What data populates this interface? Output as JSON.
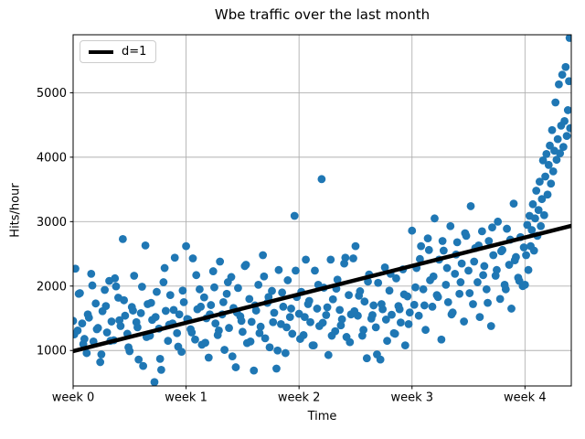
{
  "chart_data": {
    "type": "scatter",
    "title": "Wbe traffic over the last month",
    "xlabel": "Time",
    "ylabel": "Hits/hour",
    "x_unit": "weeks",
    "xlim": [
      0,
      4.41
    ],
    "ylim": [
      450,
      5900
    ],
    "x_ticks": [
      0,
      1,
      2,
      3,
      4
    ],
    "x_tick_labels": [
      "week 0",
      "week 1",
      "week 2",
      "week 3",
      "week 4"
    ],
    "y_ticks": [
      1000,
      2000,
      3000,
      4000,
      5000
    ],
    "y_tick_labels": [
      "1000",
      "2000",
      "3000",
      "4000",
      "5000"
    ],
    "grid": true,
    "grid_color": "#b0b0b0",
    "marker_color": "#1f77b4",
    "marker_radius": 4.4,
    "spine_color": "#000000",
    "legend": {
      "position": "upper left",
      "entries": [
        {
          "label": "d=1",
          "type": "line",
          "color": "#000000",
          "linewidth": 4
        }
      ]
    },
    "trend_line": {
      "name": "d=1",
      "color": "#000000",
      "linewidth": 4.5,
      "x": [
        0,
        4.41
      ],
      "y": [
        990,
        2935
      ]
    },
    "points": [
      [
        0.0,
        1460
      ],
      [
        0.02,
        2270
      ],
      [
        0.04,
        1310
      ],
      [
        0.06,
        1890
      ],
      [
        0.08,
        1420
      ],
      [
        0.1,
        1180
      ],
      [
        0.12,
        960
      ],
      [
        0.14,
        1510
      ],
      [
        0.16,
        2190
      ],
      [
        0.18,
        1140
      ],
      [
        0.2,
        1730
      ],
      [
        0.22,
        1350
      ],
      [
        0.24,
        820
      ],
      [
        0.26,
        1610
      ],
      [
        0.28,
        1940
      ],
      [
        0.3,
        1280
      ],
      [
        0.32,
        2080
      ],
      [
        0.34,
        1450
      ],
      [
        0.36,
        1160
      ],
      [
        0.38,
        1995
      ],
      [
        0.4,
        1820
      ],
      [
        0.42,
        1380
      ],
      [
        0.44,
        2730
      ],
      [
        0.46,
        1540
      ],
      [
        0.48,
        1260
      ],
      [
        0.5,
        990
      ],
      [
        0.52,
        1675
      ],
      [
        0.54,
        2160
      ],
      [
        0.56,
        1440
      ],
      [
        0.58,
        860
      ],
      [
        0.6,
        1580
      ],
      [
        0.62,
        760
      ],
      [
        0.64,
        2630
      ],
      [
        0.66,
        1720
      ],
      [
        0.68,
        1230
      ],
      [
        0.7,
        1475
      ],
      [
        0.72,
        510
      ],
      [
        0.74,
        1910
      ],
      [
        0.76,
        1340
      ],
      [
        0.78,
        700
      ],
      [
        0.8,
        2060
      ],
      [
        0.82,
        1615
      ],
      [
        0.84,
        1150
      ],
      [
        0.86,
        1860
      ],
      [
        0.88,
        1420
      ],
      [
        0.9,
        2440
      ],
      [
        0.92,
        1270
      ],
      [
        0.94,
        1560
      ],
      [
        0.96,
        980
      ],
      [
        0.98,
        1750
      ],
      [
        1.0,
        2620
      ],
      [
        1.02,
        1480
      ],
      [
        1.04,
        1330
      ],
      [
        1.06,
        2430
      ],
      [
        1.08,
        1170
      ],
      [
        1.1,
        1640
      ],
      [
        1.12,
        1950
      ],
      [
        1.14,
        1090
      ],
      [
        1.16,
        1825
      ],
      [
        1.18,
        1500
      ],
      [
        1.2,
        890
      ],
      [
        1.22,
        1705
      ],
      [
        1.24,
        2230
      ],
      [
        1.26,
        1420
      ],
      [
        1.28,
        1240
      ],
      [
        1.3,
        2380
      ],
      [
        1.32,
        1560
      ],
      [
        1.34,
        1010
      ],
      [
        1.36,
        1880
      ],
      [
        1.38,
        1350
      ],
      [
        1.4,
        2140
      ],
      [
        1.42,
        1660
      ],
      [
        1.44,
        740
      ],
      [
        1.46,
        1970
      ],
      [
        1.48,
        1530
      ],
      [
        1.5,
        1290
      ],
      [
        1.52,
        2310
      ],
      [
        1.54,
        1115
      ],
      [
        1.56,
        1800
      ],
      [
        1.58,
        1445
      ],
      [
        1.6,
        690
      ],
      [
        1.62,
        1620
      ],
      [
        1.64,
        2020
      ],
      [
        1.66,
        1370
      ],
      [
        1.68,
        2480
      ],
      [
        1.7,
        1190
      ],
      [
        1.72,
        1740
      ],
      [
        1.74,
        1050
      ],
      [
        1.76,
        1925
      ],
      [
        1.78,
        1585
      ],
      [
        1.8,
        720
      ],
      [
        1.82,
        2250
      ],
      [
        1.84,
        1410
      ],
      [
        1.86,
        1680
      ],
      [
        1.88,
        960
      ],
      [
        1.9,
        2090
      ],
      [
        1.92,
        1520
      ],
      [
        1.94,
        1260
      ],
      [
        1.96,
        3090
      ],
      [
        1.98,
        1830
      ],
      [
        2.0,
        1570
      ],
      [
        2.02,
        1910
      ],
      [
        2.04,
        1240
      ],
      [
        2.06,
        2410
      ],
      [
        2.08,
        1720
      ],
      [
        2.1,
        1440
      ],
      [
        2.12,
        1080
      ],
      [
        2.14,
        2240
      ],
      [
        2.16,
        1650
      ],
      [
        2.18,
        1380
      ],
      [
        2.2,
        3660
      ],
      [
        2.22,
        1975
      ],
      [
        2.24,
        1550
      ],
      [
        2.26,
        930
      ],
      [
        2.28,
        2410
      ],
      [
        2.3,
        1795
      ],
      [
        2.32,
        1300
      ],
      [
        2.34,
        2100
      ],
      [
        2.36,
        1630
      ],
      [
        2.38,
        1485
      ],
      [
        2.4,
        2350
      ],
      [
        2.42,
        1210
      ],
      [
        2.44,
        1860
      ],
      [
        2.46,
        1560
      ],
      [
        2.48,
        2430
      ],
      [
        2.5,
        2620
      ],
      [
        2.52,
        1540
      ],
      [
        2.54,
        1920
      ],
      [
        2.56,
        1230
      ],
      [
        2.58,
        1760
      ],
      [
        2.6,
        880
      ],
      [
        2.62,
        2180
      ],
      [
        2.64,
        1495
      ],
      [
        2.66,
        1700
      ],
      [
        2.68,
        1360
      ],
      [
        2.7,
        2050
      ],
      [
        2.72,
        860
      ],
      [
        2.74,
        1640
      ],
      [
        2.76,
        2290
      ],
      [
        2.78,
        1150
      ],
      [
        2.8,
        1930
      ],
      [
        2.82,
        1555
      ],
      [
        2.84,
        1270
      ],
      [
        2.86,
        2120
      ],
      [
        2.88,
        1690
      ],
      [
        2.9,
        1435
      ],
      [
        2.92,
        2260
      ],
      [
        2.94,
        1080
      ],
      [
        2.96,
        1840
      ],
      [
        2.98,
        1590
      ],
      [
        3.0,
        2860
      ],
      [
        3.02,
        1710
      ],
      [
        3.04,
        2280
      ],
      [
        3.06,
        1540
      ],
      [
        3.08,
        2620
      ],
      [
        3.1,
        1950
      ],
      [
        3.12,
        1320
      ],
      [
        3.14,
        2740
      ],
      [
        3.16,
        2090
      ],
      [
        3.18,
        1680
      ],
      [
        3.2,
        3050
      ],
      [
        3.22,
        1860
      ],
      [
        3.24,
        2410
      ],
      [
        3.26,
        1170
      ],
      [
        3.28,
        2550
      ],
      [
        3.3,
        2020
      ],
      [
        3.32,
        1750
      ],
      [
        3.34,
        2930
      ],
      [
        3.36,
        1590
      ],
      [
        3.38,
        2190
      ],
      [
        3.4,
        2680
      ],
      [
        3.42,
        1880
      ],
      [
        3.44,
        2350
      ],
      [
        3.46,
        1450
      ],
      [
        3.48,
        2780
      ],
      [
        3.5,
        2240
      ],
      [
        3.52,
        3240
      ],
      [
        3.54,
        1720
      ],
      [
        3.56,
        2590
      ],
      [
        3.58,
        2060
      ],
      [
        3.6,
        1520
      ],
      [
        3.62,
        2850
      ],
      [
        3.64,
        2310
      ],
      [
        3.66,
        1950
      ],
      [
        3.68,
        2700
      ],
      [
        3.7,
        1380
      ],
      [
        3.72,
        2480
      ],
      [
        3.74,
        2160
      ],
      [
        3.76,
        3000
      ],
      [
        3.78,
        1800
      ],
      [
        3.8,
        2560
      ],
      [
        3.82,
        2020
      ],
      [
        3.84,
        2890
      ],
      [
        3.86,
        2330
      ],
      [
        3.88,
        1650
      ],
      [
        3.9,
        3280
      ],
      [
        3.92,
        2450
      ],
      [
        3.94,
        2130
      ],
      [
        3.96,
        2760
      ],
      [
        3.98,
        2000
      ],
      [
        4.0,
        2020
      ],
      [
        4.01,
        2480
      ],
      [
        4.02,
        2950
      ],
      [
        4.03,
        2250
      ],
      [
        4.04,
        3090
      ],
      [
        4.05,
        2620
      ],
      [
        4.06,
        2870
      ],
      [
        4.07,
        3270
      ],
      [
        4.08,
        2550
      ],
      [
        4.09,
        3050
      ],
      [
        4.1,
        3480
      ],
      [
        4.11,
        2780
      ],
      [
        4.12,
        3180
      ],
      [
        4.13,
        3620
      ],
      [
        4.14,
        2930
      ],
      [
        4.15,
        3350
      ],
      [
        4.16,
        3950
      ],
      [
        4.17,
        3100
      ],
      [
        4.18,
        3700
      ],
      [
        4.19,
        4050
      ],
      [
        4.2,
        3420
      ],
      [
        4.21,
        3880
      ],
      [
        4.22,
        4180
      ],
      [
        4.23,
        3590
      ],
      [
        4.24,
        4420
      ],
      [
        4.25,
        3780
      ],
      [
        4.26,
        4100
      ],
      [
        4.27,
        4850
      ],
      [
        4.28,
        3960
      ],
      [
        4.29,
        4280
      ],
      [
        4.3,
        5130
      ],
      [
        4.31,
        4060
      ],
      [
        4.32,
        4490
      ],
      [
        4.33,
        5280
      ],
      [
        4.34,
        4160
      ],
      [
        4.35,
        4560
      ],
      [
        4.36,
        5400
      ],
      [
        4.37,
        4330
      ],
      [
        4.38,
        4730
      ],
      [
        4.39,
        5180
      ],
      [
        4.4,
        4450
      ],
      [
        4.395,
        5850
      ],
      [
        0.01,
        1250
      ],
      [
        0.05,
        1880
      ],
      [
        0.09,
        1100
      ],
      [
        0.13,
        1560
      ],
      [
        0.17,
        2010
      ],
      [
        0.21,
        1330
      ],
      [
        0.25,
        940
      ],
      [
        0.29,
        1690
      ],
      [
        0.33,
        1150
      ],
      [
        0.37,
        2120
      ],
      [
        0.41,
        1470
      ],
      [
        0.45,
        1780
      ],
      [
        0.49,
        1050
      ],
      [
        0.53,
        1620
      ],
      [
        0.57,
        1360
      ],
      [
        0.61,
        1990
      ],
      [
        0.65,
        1210
      ],
      [
        0.69,
        1740
      ],
      [
        0.73,
        1520
      ],
      [
        0.77,
        870
      ],
      [
        0.81,
        2280
      ],
      [
        0.85,
        1400
      ],
      [
        0.89,
        1630
      ],
      [
        0.93,
        1060
      ],
      [
        0.97,
        1930
      ],
      [
        1.01,
        1490
      ],
      [
        1.05,
        1280
      ],
      [
        1.09,
        2170
      ],
      [
        1.13,
        1680
      ],
      [
        1.17,
        1120
      ],
      [
        1.21,
        1560
      ],
      [
        1.25,
        1980
      ],
      [
        1.29,
        1310
      ],
      [
        1.33,
        1750
      ],
      [
        1.37,
        2060
      ],
      [
        1.41,
        910
      ],
      [
        1.45,
        1590
      ],
      [
        1.49,
        1460
      ],
      [
        1.53,
        2330
      ],
      [
        1.57,
        1140
      ],
      [
        1.61,
        1700
      ],
      [
        1.65,
        1270
      ],
      [
        1.69,
        2150
      ],
      [
        1.73,
        1830
      ],
      [
        1.77,
        1440
      ],
      [
        1.81,
        1000
      ],
      [
        1.85,
        1900
      ],
      [
        1.89,
        1360
      ],
      [
        1.93,
        1650
      ],
      [
        1.97,
        2240
      ],
      [
        2.01,
        1180
      ],
      [
        2.05,
        1520
      ],
      [
        2.09,
        1770
      ],
      [
        2.13,
        1080
      ],
      [
        2.17,
        2020
      ],
      [
        2.21,
        1430
      ],
      [
        2.25,
        1670
      ],
      [
        2.29,
        1230
      ],
      [
        2.33,
        1960
      ],
      [
        2.37,
        1390
      ],
      [
        2.41,
        2440
      ],
      [
        2.45,
        1130
      ],
      [
        2.49,
        1610
      ],
      [
        2.53,
        1850
      ],
      [
        2.57,
        1320
      ],
      [
        2.61,
        2070
      ],
      [
        2.65,
        1550
      ],
      [
        2.69,
        940
      ],
      [
        2.73,
        1720
      ],
      [
        2.77,
        1480
      ],
      [
        2.81,
        2190
      ],
      [
        2.85,
        1260
      ],
      [
        2.89,
        1640
      ],
      [
        2.93,
        1870
      ],
      [
        2.97,
        1410
      ],
      [
        3.03,
        1980
      ],
      [
        3.07,
        2420
      ],
      [
        3.11,
        1700
      ],
      [
        3.15,
        2560
      ],
      [
        3.19,
        2150
      ],
      [
        3.23,
        1830
      ],
      [
        3.27,
        2700
      ],
      [
        3.31,
        2280
      ],
      [
        3.35,
        1560
      ],
      [
        3.39,
        2490
      ],
      [
        3.43,
        2060
      ],
      [
        3.47,
        2820
      ],
      [
        3.51,
        1890
      ],
      [
        3.55,
        2380
      ],
      [
        3.59,
        2630
      ],
      [
        3.63,
        2170
      ],
      [
        3.67,
        1740
      ],
      [
        3.71,
        2910
      ],
      [
        3.75,
        2250
      ],
      [
        3.79,
        2540
      ],
      [
        3.83,
        1950
      ],
      [
        3.87,
        2720
      ],
      [
        3.91,
        2400
      ],
      [
        3.95,
        2080
      ],
      [
        3.99,
        2600
      ]
    ]
  }
}
